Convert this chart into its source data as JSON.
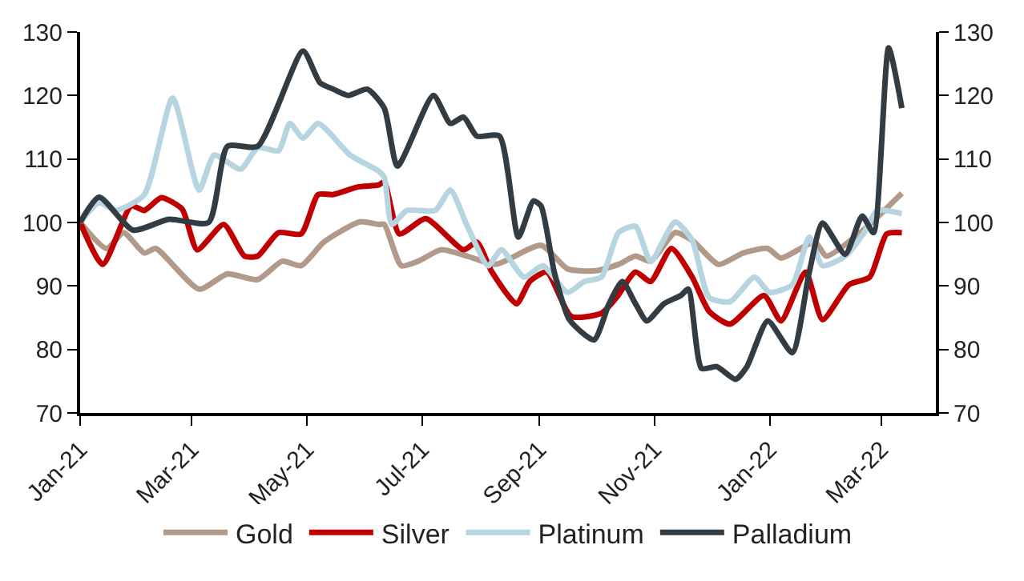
{
  "chart_data": {
    "type": "line",
    "xlim": [
      "2021-01-01",
      "2022-03-30"
    ],
    "xticks": [
      {
        "value": "2021-01-01",
        "label": "Jan-21"
      },
      {
        "value": "2021-03-01",
        "label": "Mar-21"
      },
      {
        "value": "2021-05-01",
        "label": "May-21"
      },
      {
        "value": "2021-07-01",
        "label": "Jul-21"
      },
      {
        "value": "2021-09-01",
        "label": "Sep-21"
      },
      {
        "value": "2021-11-01",
        "label": "Nov-21"
      },
      {
        "value": "2022-01-01",
        "label": "Jan-22"
      },
      {
        "value": "2022-03-01",
        "label": "Mar-22"
      }
    ],
    "ylim": [
      70,
      130
    ],
    "yticks": [
      70,
      80,
      90,
      100,
      110,
      120,
      130
    ],
    "y2lim": [
      70,
      130
    ],
    "y2ticks": [
      70,
      80,
      90,
      100,
      110,
      120,
      130
    ],
    "legend": "bottom",
    "marker": "none",
    "line_style": "solid",
    "series": [
      {
        "name": "Gold",
        "color": "#b29a8a",
        "x": [
          "2021-01-01",
          "2021-01-15",
          "2021-01-24",
          "2021-02-04",
          "2021-02-10",
          "2021-03-05",
          "2021-03-20",
          "2021-04-05",
          "2021-04-18",
          "2021-04-28",
          "2021-05-10",
          "2021-05-29",
          "2021-06-08",
          "2021-06-11",
          "2021-06-20",
          "2021-06-29",
          "2021-07-11",
          "2021-07-25",
          "2021-08-09",
          "2021-09-02",
          "2021-09-16",
          "2021-10-01",
          "2021-10-13",
          "2021-10-22",
          "2021-10-30",
          "2021-11-12",
          "2021-11-21",
          "2021-12-05",
          "2021-12-18",
          "2021-12-31",
          "2022-01-07",
          "2022-01-25",
          "2022-01-31",
          "2022-02-18",
          "2022-03-01",
          "2022-03-12"
        ],
        "values": [
          100,
          95.9,
          98.4,
          95.2,
          95.9,
          89.5,
          91.9,
          91,
          93.9,
          93.2,
          96.9,
          100.1,
          99.7,
          99.7,
          93.2,
          93.9,
          95.7,
          94.7,
          93.4,
          96.4,
          92.7,
          92.4,
          93.4,
          94.7,
          93.9,
          98.4,
          97.2,
          93.4,
          95.2,
          95.9,
          94.4,
          96.9,
          94.7,
          98.4,
          101.4,
          104.6
        ]
      },
      {
        "name": "Silver",
        "color": "#c00000",
        "x": [
          "2021-01-01",
          "2021-01-13",
          "2021-01-28",
          "2021-02-04",
          "2021-02-13",
          "2021-02-24",
          "2021-03-04",
          "2021-03-18",
          "2021-03-29",
          "2021-04-05",
          "2021-04-16",
          "2021-04-28",
          "2021-05-07",
          "2021-05-15",
          "2021-05-28",
          "2021-06-08",
          "2021-06-11",
          "2021-06-19",
          "2021-07-03",
          "2021-07-23",
          "2021-07-30",
          "2021-08-07",
          "2021-08-20",
          "2021-08-27",
          "2021-09-05",
          "2021-09-18",
          "2021-10-04",
          "2021-10-12",
          "2021-10-22",
          "2021-10-30",
          "2021-11-10",
          "2021-11-21",
          "2021-11-30",
          "2021-12-11",
          "2021-12-29",
          "2022-01-07",
          "2022-01-20",
          "2022-01-29",
          "2022-02-12",
          "2022-02-23",
          "2022-03-04",
          "2022-03-12"
        ],
        "values": [
          100,
          93.4,
          102.6,
          101.9,
          103.9,
          102.1,
          95.7,
          99.7,
          94.7,
          94.7,
          98.4,
          98.2,
          104.4,
          104.4,
          105.6,
          105.9,
          106.4,
          98.2,
          100.6,
          95.7,
          96.9,
          92.2,
          87.2,
          90.7,
          92.2,
          85.2,
          85.7,
          88.2,
          92.2,
          90.7,
          95.9,
          91.4,
          86,
          84,
          88.5,
          84.5,
          92.2,
          84.7,
          90.2,
          91.4,
          98.2,
          98.4
        ]
      },
      {
        "name": "Platinum",
        "color": "#b7d5e0",
        "x": [
          "2021-01-01",
          "2021-01-11",
          "2021-01-20",
          "2021-02-04",
          "2021-02-19",
          "2021-03-05",
          "2021-03-13",
          "2021-03-27",
          "2021-04-05",
          "2021-04-16",
          "2021-04-22",
          "2021-04-29",
          "2021-05-07",
          "2021-05-24",
          "2021-06-08",
          "2021-06-11",
          "2021-06-15",
          "2021-06-23",
          "2021-07-08",
          "2021-07-16",
          "2021-07-25",
          "2021-08-05",
          "2021-08-12",
          "2021-08-24",
          "2021-09-03",
          "2021-09-16",
          "2021-09-25",
          "2021-10-04",
          "2021-10-13",
          "2021-10-22",
          "2021-10-30",
          "2021-11-12",
          "2021-11-21",
          "2021-11-30",
          "2021-12-11",
          "2021-12-24",
          "2022-01-01",
          "2022-01-13",
          "2022-01-22",
          "2022-01-29",
          "2022-02-10",
          "2022-02-20",
          "2022-02-27",
          "2022-03-12"
        ],
        "values": [
          100,
          103.1,
          101.9,
          104.4,
          119.6,
          105.1,
          110.6,
          108.4,
          111.8,
          111.3,
          115.6,
          113.3,
          115.6,
          110.6,
          108.1,
          107.1,
          99.7,
          101.9,
          101.9,
          105.1,
          99.4,
          93.2,
          95.7,
          91.4,
          93.2,
          89,
          90.7,
          91.4,
          98.4,
          99.4,
          93.9,
          100.1,
          97.2,
          88.2,
          87.5,
          91.4,
          89,
          90.2,
          97.7,
          93.2,
          94.7,
          98.4,
          101.9,
          101.4
        ]
      },
      {
        "name": "Palladium",
        "color": "#333c42",
        "x": [
          "2021-01-01",
          "2021-01-11",
          "2021-01-29",
          "2021-02-17",
          "2021-03-10",
          "2021-03-20",
          "2021-04-05",
          "2021-04-29",
          "2021-05-08",
          "2021-05-15",
          "2021-05-23",
          "2021-06-02",
          "2021-06-11",
          "2021-06-18",
          "2021-07-07",
          "2021-07-16",
          "2021-07-23",
          "2021-07-30",
          "2021-08-11",
          "2021-08-21",
          "2021-08-29",
          "2021-09-02",
          "2021-09-09",
          "2021-09-17",
          "2021-09-30",
          "2021-10-08",
          "2021-10-15",
          "2021-10-22",
          "2021-10-28",
          "2021-11-06",
          "2021-11-15",
          "2021-11-19",
          "2021-11-26",
          "2021-12-04",
          "2021-12-14",
          "2021-12-20",
          "2021-12-31",
          "2022-01-13",
          "2022-01-22",
          "2022-01-29",
          "2022-02-10",
          "2022-02-19",
          "2022-02-25",
          "2022-03-05",
          "2022-03-12"
        ],
        "values": [
          100,
          104,
          98.8,
          100.5,
          100,
          112,
          112,
          127,
          122,
          121,
          120,
          121,
          118,
          108.9,
          120,
          115.6,
          116.6,
          113.6,
          113.6,
          97.7,
          103.4,
          102.6,
          92.2,
          84.7,
          81.5,
          87.2,
          90.7,
          87.2,
          84.5,
          87.2,
          88.5,
          89.5,
          77,
          77.3,
          75.3,
          77.3,
          84.5,
          79.5,
          92.2,
          99.9,
          95,
          101,
          98.4,
          127.5,
          118
        ]
      }
    ]
  }
}
